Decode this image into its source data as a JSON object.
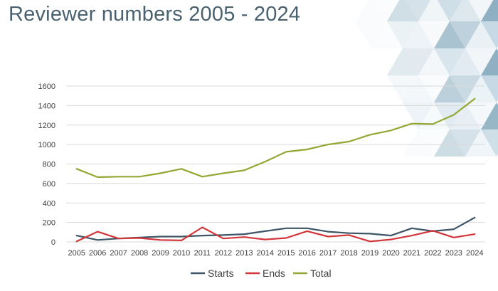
{
  "slide": {
    "title": "Reviewer numbers 2005 - 2024"
  },
  "chart_data": {
    "type": "line",
    "title": "",
    "xlabel": "",
    "ylabel": "",
    "x": [
      "2005",
      "2006",
      "2007",
      "2008",
      "2009",
      "2010",
      "2011",
      "2012",
      "2013",
      "2014",
      "2015",
      "2016",
      "2017",
      "2018",
      "2019",
      "2020",
      "2021",
      "2022",
      "2023",
      "2024"
    ],
    "ylim": [
      0,
      1600
    ],
    "yticks": [
      "0",
      "200",
      "400",
      "600",
      "800",
      "1000",
      "1200",
      "1400",
      "1600"
    ],
    "grid": true,
    "legend_position": "bottom",
    "series": [
      {
        "name": "Starts",
        "color": "#3d5566",
        "values": [
          65,
          20,
          35,
          45,
          55,
          55,
          65,
          70,
          80,
          110,
          140,
          140,
          105,
          90,
          85,
          65,
          140,
          110,
          130,
          250
        ]
      },
      {
        "name": "Ends",
        "color": "#d2363a",
        "values": [
          5,
          105,
          35,
          40,
          20,
          15,
          150,
          35,
          50,
          25,
          40,
          110,
          55,
          70,
          5,
          25,
          65,
          115,
          45,
          80
        ]
      },
      {
        "name": "Total",
        "color": "#93a834",
        "values": [
          750,
          665,
          670,
          670,
          705,
          750,
          670,
          705,
          735,
          825,
          925,
          950,
          1000,
          1030,
          1100,
          1145,
          1215,
          1210,
          1305,
          1470
        ]
      }
    ]
  }
}
